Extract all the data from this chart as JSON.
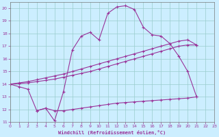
{
  "xlabel": "Windchill (Refroidissement éolien,°C)",
  "xlim": [
    0,
    23
  ],
  "ylim": [
    11,
    20.5
  ],
  "yticks": [
    11,
    12,
    13,
    14,
    15,
    16,
    17,
    18,
    19,
    20
  ],
  "xticks": [
    0,
    1,
    2,
    3,
    4,
    5,
    6,
    7,
    8,
    9,
    10,
    11,
    12,
    13,
    14,
    15,
    16,
    17,
    18,
    19,
    20,
    21,
    22,
    23
  ],
  "bg_color": "#cceeff",
  "grid_color": "#99cccc",
  "line_color": "#993399",
  "line1_x": [
    0,
    1,
    2,
    3,
    4,
    5,
    6,
    7,
    8,
    9,
    10,
    11,
    12,
    13,
    14,
    15,
    16,
    17,
    18,
    19,
    20,
    21
  ],
  "line1_y": [
    14.0,
    13.8,
    13.6,
    11.9,
    12.1,
    11.1,
    13.4,
    16.7,
    17.8,
    18.1,
    17.5,
    19.6,
    20.1,
    20.2,
    19.9,
    18.5,
    17.9,
    17.8,
    17.2,
    16.2,
    15.0,
    13.0
  ],
  "line2_x": [
    0,
    1,
    2,
    3,
    4,
    5,
    6,
    7,
    8,
    9,
    10,
    11,
    12,
    13,
    14,
    15,
    16,
    17,
    18,
    19,
    20,
    21
  ],
  "line2_y": [
    14.0,
    14.05,
    14.1,
    14.2,
    14.3,
    14.4,
    14.55,
    14.7,
    14.85,
    15.0,
    15.2,
    15.4,
    15.6,
    15.8,
    16.0,
    16.2,
    16.4,
    16.6,
    16.8,
    17.0,
    17.1,
    17.1
  ],
  "line3_x": [
    0,
    1,
    2,
    3,
    4,
    5,
    6,
    7,
    8,
    9,
    10,
    11,
    12,
    13,
    14,
    15,
    16,
    17,
    18,
    19,
    20,
    21
  ],
  "line3_y": [
    14.0,
    14.1,
    14.2,
    14.35,
    14.5,
    14.65,
    14.8,
    15.0,
    15.2,
    15.4,
    15.6,
    15.8,
    16.0,
    16.2,
    16.4,
    16.6,
    16.8,
    17.0,
    17.2,
    17.4,
    17.5,
    17.1
  ],
  "line4_x": [
    3,
    4,
    5,
    6,
    7,
    8,
    9,
    10,
    11,
    12,
    13,
    14,
    15,
    16,
    17,
    18,
    19,
    20,
    21
  ],
  "line4_y": [
    11.9,
    12.1,
    11.9,
    11.9,
    12.0,
    12.1,
    12.2,
    12.3,
    12.4,
    12.5,
    12.55,
    12.6,
    12.65,
    12.7,
    12.75,
    12.8,
    12.85,
    12.9,
    13.0
  ]
}
